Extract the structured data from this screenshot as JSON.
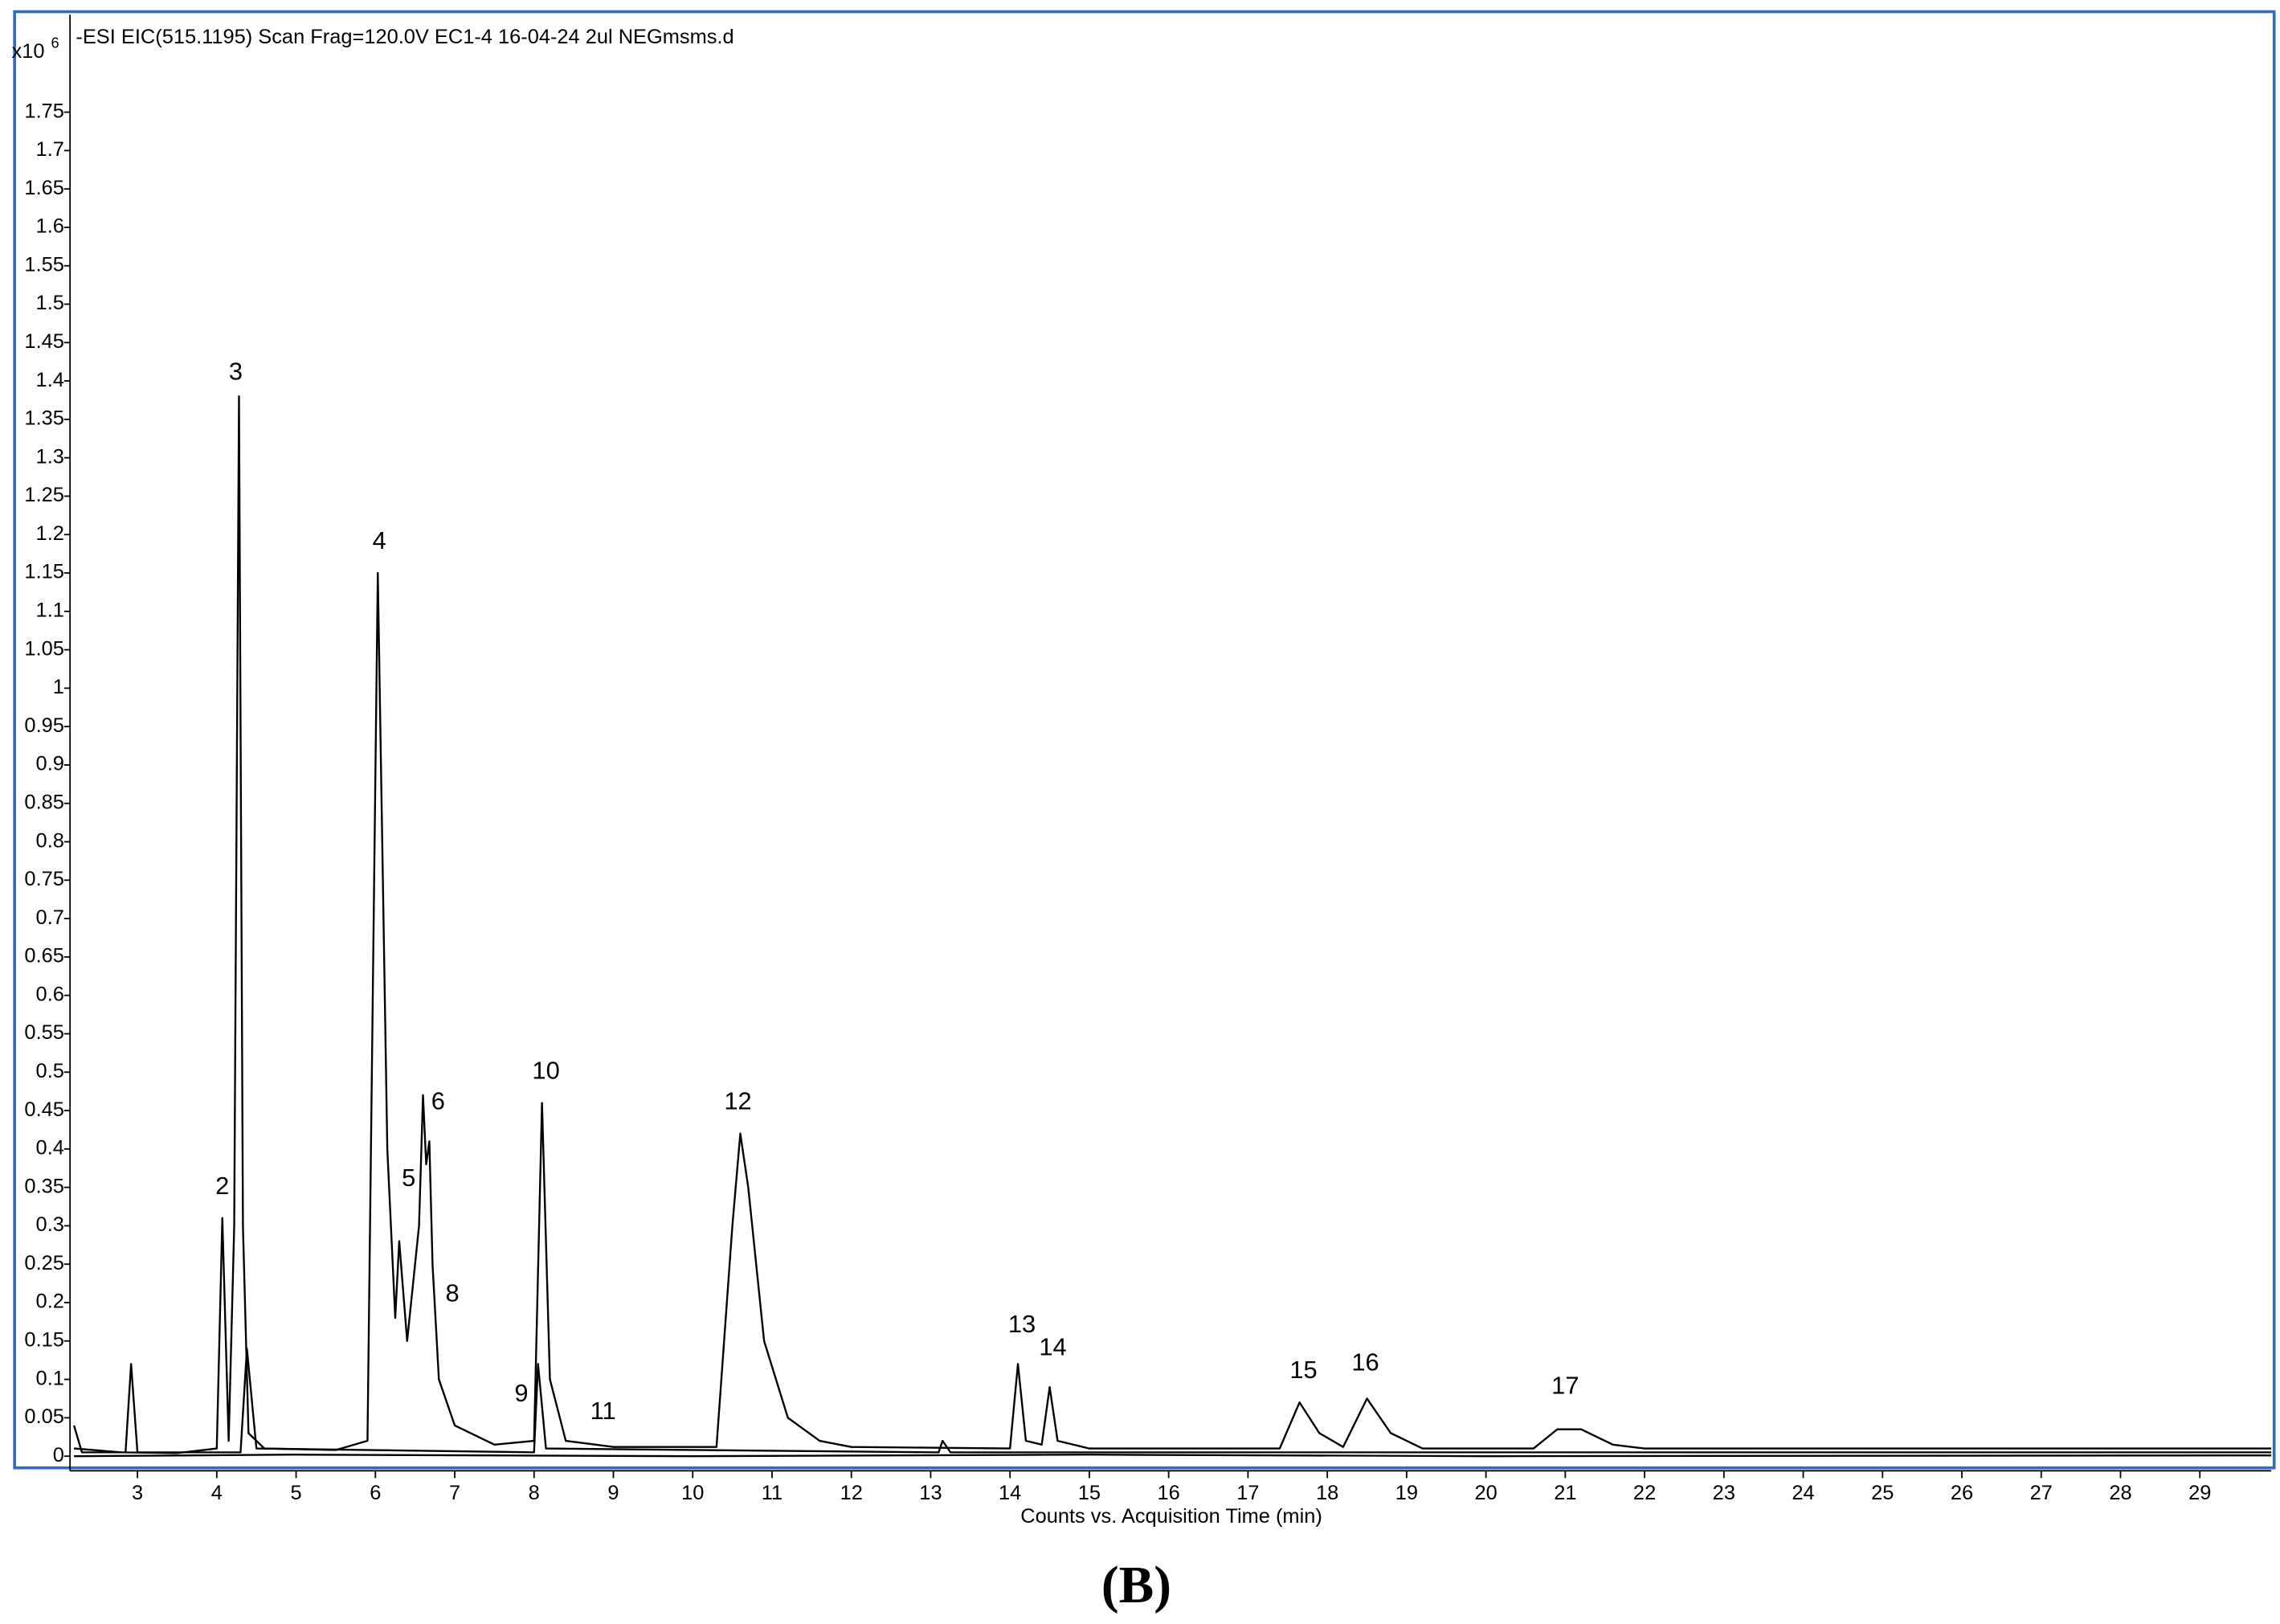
{
  "chart_data": {
    "type": "line",
    "title": "-ESI EIC(515.1195) Scan Frag=120.0V EC1-4 16-04-24 2ul NEGmsms.d",
    "y_multiplier": "x10",
    "y_exponent": "6",
    "x_label": "Counts vs. Acquisition Time (min)",
    "caption": "(B)",
    "xlim": [
      2.15,
      29.9
    ],
    "ylim": [
      -0.019,
      1.877
    ],
    "xticks": [
      3,
      4,
      5,
      6,
      7,
      8,
      9,
      10,
      11,
      12,
      13,
      14,
      15,
      16,
      17,
      18,
      19,
      20,
      21,
      22,
      23,
      24,
      25,
      26,
      27,
      28,
      29
    ],
    "yticks": [
      0,
      0.05,
      0.1,
      0.15,
      0.2,
      0.25,
      0.3,
      0.35,
      0.4,
      0.45,
      0.5,
      0.55,
      0.6,
      0.65,
      0.7,
      0.75,
      0.8,
      0.85,
      0.9,
      0.95,
      1,
      1.05,
      1.1,
      1.15,
      1.2,
      1.25,
      1.3,
      1.35,
      1.4,
      1.45,
      1.5,
      1.55,
      1.6,
      1.65,
      1.7,
      1.75
    ],
    "frame_color": "#2f6cc0",
    "series": [
      {
        "color": "#000000",
        "x": [
          2.2,
          2.8,
          3.5,
          4.0,
          4.07,
          4.15,
          4.22,
          4.28,
          4.33,
          4.4,
          4.6,
          5.5,
          5.9,
          6.03,
          6.15,
          6.25,
          6.3,
          6.4,
          6.55,
          6.6,
          6.64,
          6.68,
          6.72,
          6.8,
          7.0,
          7.5,
          8.0,
          8.1,
          8.2,
          8.4,
          9,
          10.3,
          10.5,
          10.6,
          10.7,
          10.9,
          11.2,
          11.6,
          12,
          14.0,
          14.1,
          14.2,
          14.4,
          14.5,
          14.6,
          15,
          17.4,
          17.65,
          17.9,
          18.2,
          18.5,
          18.8,
          19.2,
          20.6,
          20.9,
          21.2,
          21.6,
          22,
          29.9
        ],
        "values": [
          0.01,
          0.005,
          0.004,
          0.01,
          0.31,
          0.02,
          0.3,
          1.38,
          0.3,
          0.03,
          0.01,
          0.008,
          0.02,
          1.15,
          0.4,
          0.18,
          0.28,
          0.15,
          0.3,
          0.47,
          0.38,
          0.41,
          0.25,
          0.1,
          0.04,
          0.015,
          0.02,
          0.46,
          0.1,
          0.02,
          0.012,
          0.012,
          0.3,
          0.42,
          0.35,
          0.15,
          0.05,
          0.02,
          0.012,
          0.01,
          0.12,
          0.02,
          0.015,
          0.09,
          0.02,
          0.01,
          0.01,
          0.07,
          0.03,
          0.012,
          0.075,
          0.03,
          0.01,
          0.01,
          0.035,
          0.035,
          0.015,
          0.01,
          0.01
        ]
      },
      {
        "color": "#000000",
        "x": [
          2.2,
          2.3,
          2.85,
          2.92,
          3.0,
          4.3,
          4.38,
          4.5,
          8.0,
          8.05,
          8.15,
          13.1,
          13.15,
          13.25,
          29.9
        ],
        "values": [
          0.04,
          0.005,
          0.005,
          0.12,
          0.005,
          0.005,
          0.14,
          0.01,
          0.005,
          0.12,
          0.01,
          0.005,
          0.02,
          0.005,
          0.005
        ]
      },
      {
        "color": "#000000",
        "x": [
          2.2,
          5,
          10,
          15,
          20,
          29.9
        ],
        "values": [
          0,
          0.002,
          0,
          0.002,
          0,
          0.001
        ]
      }
    ],
    "annotations": [
      {
        "text": "2",
        "x": 4.07,
        "y": 0.35
      },
      {
        "text": "3",
        "x": 4.24,
        "y": 1.41
      },
      {
        "text": "4",
        "x": 6.05,
        "y": 1.19
      },
      {
        "text": "5",
        "x": 6.42,
        "y": 0.36
      },
      {
        "text": "6",
        "x": 6.79,
        "y": 0.46
      },
      {
        "text": "8",
        "x": 6.97,
        "y": 0.21
      },
      {
        "text": "9",
        "x": 7.84,
        "y": 0.08
      },
      {
        "text": "10",
        "x": 8.15,
        "y": 0.5
      },
      {
        "text": "11",
        "x": 8.87,
        "y": 0.057
      },
      {
        "text": "12",
        "x": 10.57,
        "y": 0.46
      },
      {
        "text": "13",
        "x": 14.15,
        "y": 0.17
      },
      {
        "text": "14",
        "x": 14.54,
        "y": 0.14
      },
      {
        "text": "15",
        "x": 17.7,
        "y": 0.11
      },
      {
        "text": "16",
        "x": 18.48,
        "y": 0.12
      },
      {
        "text": "17",
        "x": 21.0,
        "y": 0.09
      }
    ]
  }
}
